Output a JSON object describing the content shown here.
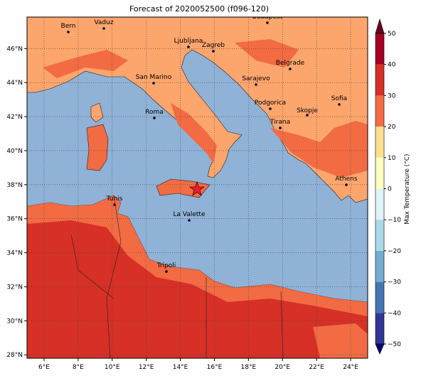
{
  "title": "Forecast of 2020052500 (f096-120)",
  "map": {
    "xlim": [
      5,
      25
    ],
    "ylim": [
      27.8,
      47.85
    ],
    "lon_ticks": [
      {
        "value": 6,
        "label": "6°E"
      },
      {
        "value": 8,
        "label": "8°E"
      },
      {
        "value": 10,
        "label": "10°E"
      },
      {
        "value": 12,
        "label": "12°E"
      },
      {
        "value": 14,
        "label": "14°E"
      },
      {
        "value": 16,
        "label": "16°E"
      },
      {
        "value": 18,
        "label": "18°E"
      },
      {
        "value": 20,
        "label": "20°E"
      },
      {
        "value": 22,
        "label": "22°E"
      },
      {
        "value": 24,
        "label": "24°E"
      }
    ],
    "lat_ticks": [
      {
        "value": 28,
        "label": "28°N"
      },
      {
        "value": 30,
        "label": "30°N"
      },
      {
        "value": 32,
        "label": "32°N"
      },
      {
        "value": 34,
        "label": "34°N"
      },
      {
        "value": 36,
        "label": "36°N"
      },
      {
        "value": 38,
        "label": "38°N"
      },
      {
        "value": 40,
        "label": "40°N"
      },
      {
        "value": 42,
        "label": "42°N"
      },
      {
        "value": 44,
        "label": "44°N"
      },
      {
        "value": 46,
        "label": "46°N"
      }
    ],
    "cities": [
      "Bern",
      "Vaduz",
      "Budapest",
      "Ljubljana",
      "Zagreb",
      "Belgrade",
      "San Marino",
      "Sarajevo",
      "Sofia",
      "Podgorica",
      "Skopje",
      "Roma",
      "Tirana",
      "Athens",
      "Tunis",
      "La Valette",
      "Tripoli"
    ]
  },
  "colorbar": {
    "label": "Max Temperature (°C)",
    "lim": [
      -50,
      50
    ],
    "levels": [
      -50,
      -40,
      -30,
      -20,
      -10,
      0,
      10,
      20,
      30,
      40,
      50
    ],
    "colors": [
      "#313695",
      "#4575b4",
      "#74add1",
      "#abd9e9",
      "#e0f3f8",
      "#ffffbf",
      "#fee090",
      "#f46d43",
      "#d73027",
      "#a50026"
    ],
    "under_color": "#000080",
    "over_color": "#67001f",
    "ticks": [
      {
        "value": -50,
        "label": "−50"
      },
      {
        "value": -40,
        "label": "−40"
      },
      {
        "value": -30,
        "label": "−30"
      },
      {
        "value": -20,
        "label": "−20"
      },
      {
        "value": -10,
        "label": "−10"
      },
      0,
      10,
      20,
      30,
      40,
      50
    ]
  }
}
